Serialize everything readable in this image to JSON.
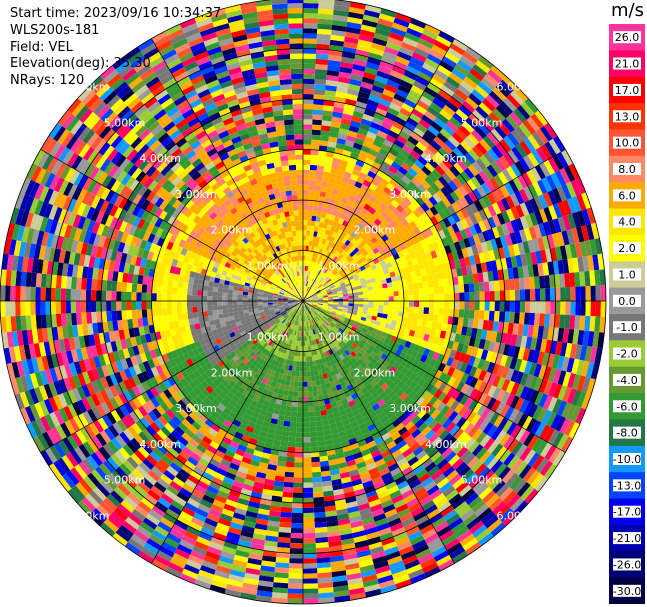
{
  "header": {
    "start_time": "Start time: 2023/09/16 10:34:37",
    "instrument": "WLS200s-181",
    "field": "Field: VEL",
    "elevation": "Elevation(deg): 35.30",
    "nrays": "NRays: 120"
  },
  "chart_data": {
    "type": "ppi",
    "field": "VEL",
    "units": "m/s",
    "nrays": 120,
    "range_rings_km": [
      1.0,
      2.0,
      3.0,
      4.0,
      5.0,
      6.0
    ],
    "range_ring_labels": [
      "1.00km",
      "2.00km",
      "3.00km",
      "4.00km",
      "5.00km",
      "6.00km"
    ],
    "max_range_km": 6.0,
    "azimuth_spokes_deg": [
      0,
      30,
      60,
      90,
      120,
      150,
      180,
      210,
      240,
      270,
      300,
      330
    ],
    "colorbar": {
      "ticks": [
        "26.0",
        "21.0",
        "17.0",
        "13.0",
        "10.0",
        "8.0",
        "6.0",
        "4.0",
        "2.0",
        "1.0",
        "0.0",
        "-1.0",
        "-2.0",
        "-4.0",
        "-6.0",
        "-8.0",
        "-10.0",
        "-13.0",
        "-17.0",
        "-21.0",
        "-26.0",
        "-30.0"
      ],
      "colors": [
        "#ff3399",
        "#ff0066",
        "#ff0000",
        "#ff3300",
        "#ff5533",
        "#ff8866",
        "#ffaa00",
        "#ffe600",
        "#ffff00",
        "#cccc99",
        "#999999",
        "#777777",
        "#99cc33",
        "#669933",
        "#339933",
        "#227744",
        "#1199ff",
        "#0044ff",
        "#0000ee",
        "#0000aa",
        "#000077",
        "#000044"
      ]
    },
    "pattern": {
      "north_sector": {
        "azimuth_deg": [
          300,
          60
        ],
        "range_km": [
          0.5,
          3.0
        ],
        "velocity_ms": [
          4,
          8
        ]
      },
      "east_west_band": {
        "range_km": [
          0.0,
          2.0
        ],
        "velocity_ms": [
          1,
          3
        ]
      },
      "west_sector": {
        "azimuth_deg": [
          230,
          280
        ],
        "range_km": [
          0.3,
          2.2
        ],
        "velocity_ms": [
          -1,
          0
        ]
      },
      "south_sector": {
        "azimuth_deg": [
          110,
          250
        ],
        "range_km": [
          0.2,
          3.2
        ],
        "velocity_ms": [
          -6,
          -2
        ]
      },
      "noise_beyond_km": 3.0
    }
  }
}
